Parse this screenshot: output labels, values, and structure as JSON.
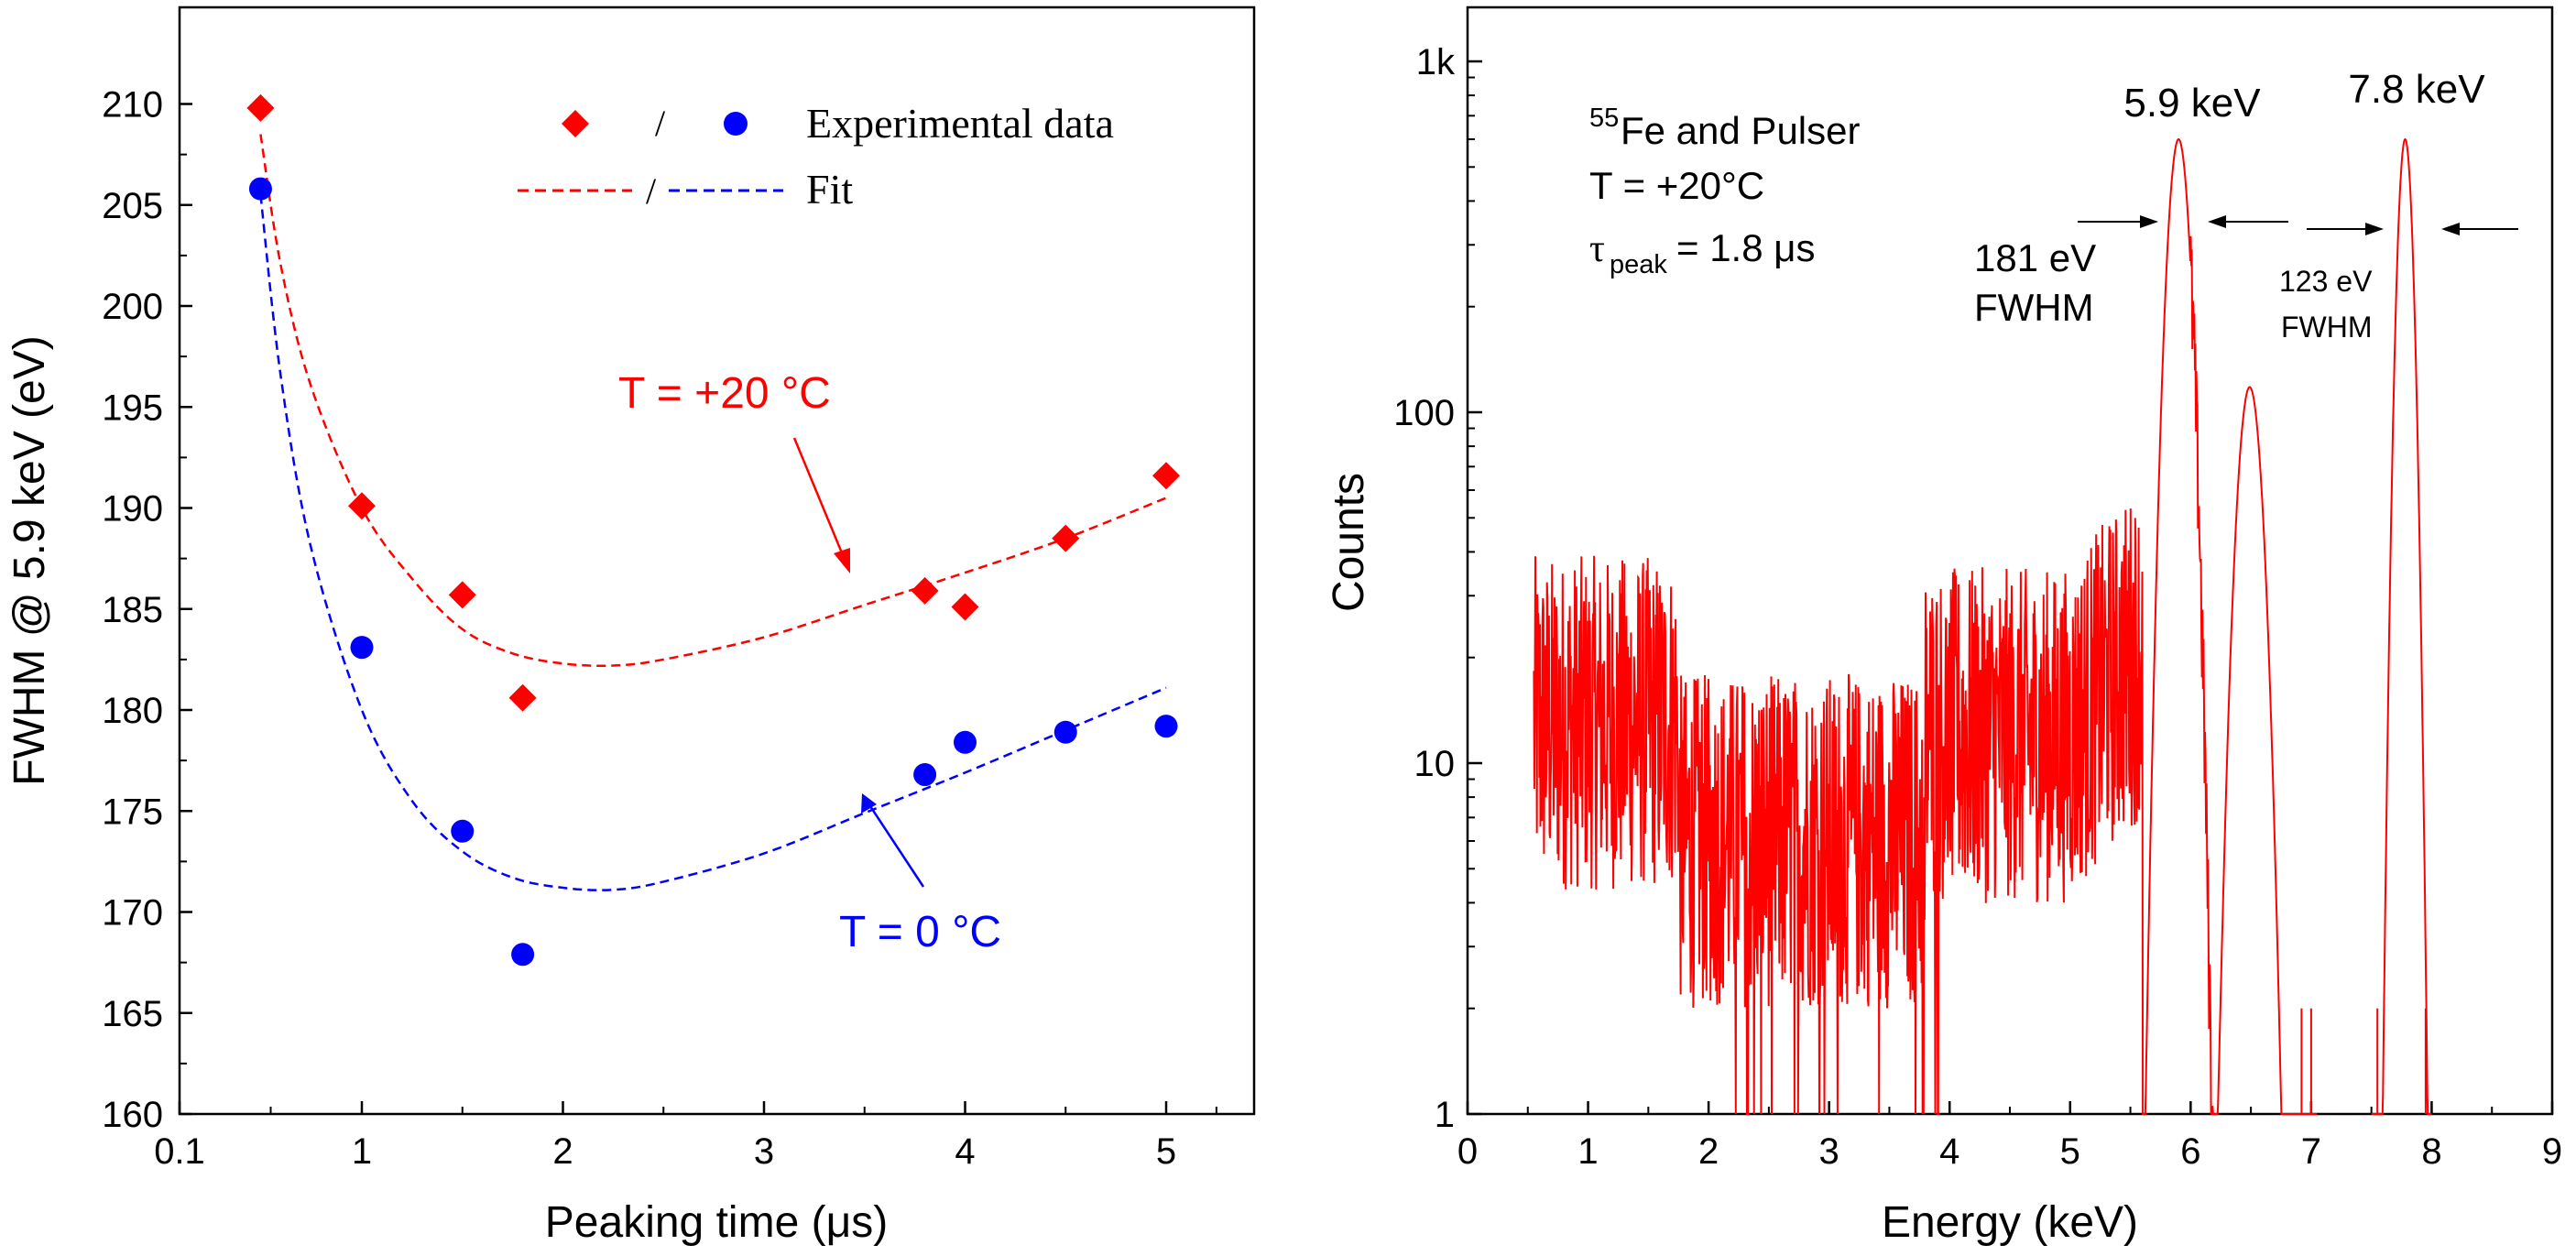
{
  "colors": {
    "red": "#ff0000",
    "blue": "#0000ff",
    "black": "#000000"
  },
  "chart_data": [
    {
      "type": "scatter",
      "xlabel": "Peaking time (μs)",
      "ylabel": "FWHM @ 5.9 keV (eV)",
      "xlim": [
        0.1,
        5.5
      ],
      "ylim": [
        160,
        213
      ],
      "x_ticks": [
        "0.1",
        "1",
        "2",
        "3",
        "4",
        "5"
      ],
      "y_ticks": [
        "160",
        "165",
        "170",
        "175",
        "180",
        "185",
        "190",
        "195",
        "200",
        "205",
        "210"
      ],
      "legend": {
        "sep": "/",
        "data_label": "Experimental data",
        "fit_label": "Fit",
        "position": "top-right"
      },
      "annotations": {
        "t20": "T = +20 °C",
        "t0": "T = 0 °C"
      },
      "series": [
        {
          "name": "T = +20 °C",
          "color": "#ff0000",
          "marker": "diamond",
          "x": [
            0.5,
            1.0,
            1.5,
            1.8,
            3.8,
            4.0,
            4.5,
            5.0
          ],
          "y": [
            209.8,
            190.1,
            185.7,
            180.6,
            185.9,
            185.1,
            188.5,
            191.6
          ],
          "fit": {
            "x": [
              0.5,
              0.6,
              0.75,
              1.0,
              1.25,
              1.5,
              1.75,
              2.0,
              2.25,
              2.5,
              3.0,
              3.5,
              4.0,
              4.5,
              5.0
            ],
            "y": [
              208.5,
              202.0,
              196.0,
              190.0,
              186.5,
              184.0,
              182.8,
              182.3,
              182.2,
              182.5,
              183.6,
              185.2,
              186.8,
              188.5,
              190.5
            ]
          }
        },
        {
          "name": "T = 0 °C",
          "color": "#0000ff",
          "marker": "circle",
          "x": [
            0.5,
            1.0,
            1.5,
            1.8,
            3.8,
            4.0,
            4.5,
            5.0
          ],
          "y": [
            205.8,
            183.1,
            174.0,
            167.9,
            176.8,
            178.4,
            178.9,
            179.2
          ],
          "fit": {
            "x": [
              0.5,
              0.6,
              0.75,
              1.0,
              1.25,
              1.5,
              1.75,
              2.0,
              2.25,
              2.5,
              3.0,
              3.5,
              4.0,
              4.5,
              5.0
            ],
            "y": [
              205.5,
              196.5,
              188.0,
              180.0,
              175.5,
              173.0,
              171.7,
              171.2,
              171.1,
              171.5,
              172.9,
              174.9,
              176.9,
              179.0,
              181.1
            ]
          }
        }
      ]
    },
    {
      "type": "line",
      "scale": "log-y",
      "xlabel": "Energy (keV)",
      "ylabel": "Counts",
      "xlim": [
        0,
        9
      ],
      "ylim": [
        1,
        1500
      ],
      "x_ticks": [
        "0",
        "1",
        "2",
        "3",
        "4",
        "5",
        "6",
        "7",
        "8",
        "9"
      ],
      "y_ticks": [
        "1",
        "10",
        "100",
        "1k"
      ],
      "color": "#ff0000",
      "info": {
        "line1": "Fe and Pulser",
        "sup": "55",
        "line2": "T = +20°C",
        "tau": "τ",
        "tau_sub": "peak",
        "tau_val": " = 1.8 μs"
      },
      "peaks": [
        {
          "label": "5.9 keV",
          "energy": 5.9,
          "counts": 600,
          "sigma": 0.077,
          "fwhm_value": "181 eV",
          "fwhm_word": "FWHM"
        },
        {
          "label": "7.8 keV",
          "energy": 7.78,
          "counts": 600,
          "sigma": 0.052,
          "fwhm_value": "123 eV",
          "fwhm_word": "FWHM"
        }
      ],
      "kbeta_peak": {
        "energy": 6.49,
        "counts": 118,
        "sigma": 0.085
      },
      "background": [
        {
          "from": 0.55,
          "to": 1.75,
          "counts": 13
        },
        {
          "from": 1.75,
          "to": 3.8,
          "counts": 6
        },
        {
          "from": 3.8,
          "to": 5.5,
          "counts": 12
        }
      ]
    }
  ]
}
